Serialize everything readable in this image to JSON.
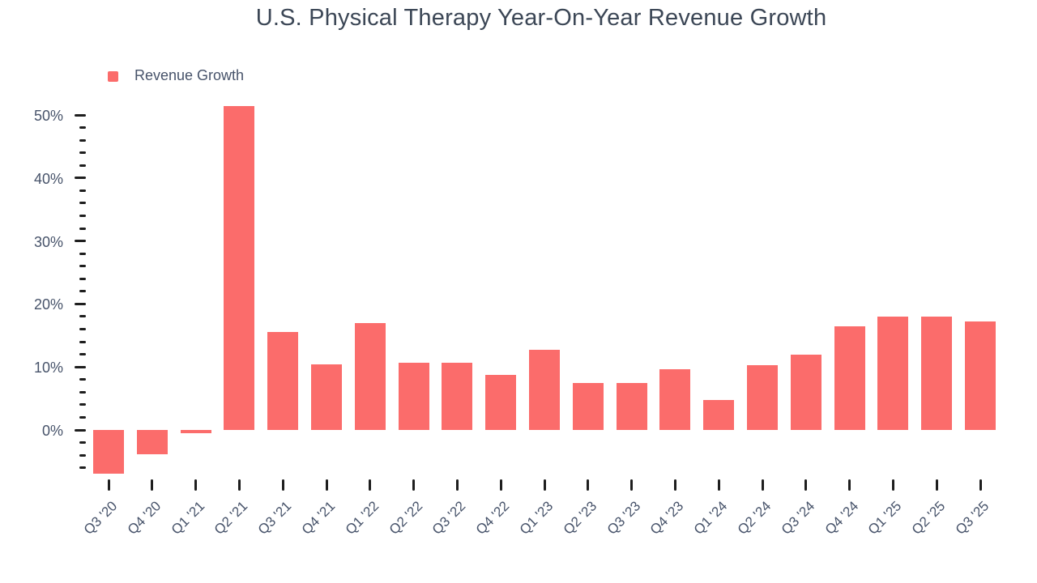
{
  "page": {
    "background": "#FFFFFF"
  },
  "colors": {
    "bar": "#FB6C6B",
    "title_text": "#3C4756",
    "axis_text": "#47536A",
    "tick_marks": "#1E1E1E"
  },
  "legend": {
    "label": "Revenue Growth",
    "swatch_color": "#FB6C6B",
    "position": "top-left"
  },
  "chart_data": {
    "type": "bar",
    "title": "U.S. Physical Therapy Year-On-Year Revenue Growth",
    "xlabel": "",
    "ylabel": "",
    "categories": [
      "Q3 '20",
      "Q4 '20",
      "Q1 '21",
      "Q2 '21",
      "Q3 '21",
      "Q4 '21",
      "Q1 '22",
      "Q2 '22",
      "Q3 '22",
      "Q4 '22",
      "Q1 '23",
      "Q2 '23",
      "Q3 '23",
      "Q4 '23",
      "Q1 '24",
      "Q2 '24",
      "Q3 '24",
      "Q4 '24",
      "Q1 '25",
      "Q2 '25",
      "Q3 '25"
    ],
    "series": [
      {
        "name": "Revenue Growth",
        "color": "#FB6C6B",
        "values": [
          -7.0,
          -3.9,
          -0.5,
          51.4,
          15.5,
          10.4,
          17.0,
          10.7,
          10.7,
          8.7,
          12.7,
          7.5,
          7.4,
          9.6,
          4.7,
          10.3,
          11.9,
          16.5,
          18.0,
          18.0,
          17.2
        ]
      }
    ],
    "value_unit": "%",
    "y_major_ticks": [
      0,
      10,
      20,
      30,
      40,
      50
    ],
    "y_major_tick_labels": [
      "0%",
      "10%",
      "20%",
      "30%",
      "40%",
      "50%"
    ],
    "y_minor_tick_step": 2,
    "ylim": [
      -7.5,
      52.8
    ],
    "grid": false,
    "legend_position": "top-left"
  }
}
